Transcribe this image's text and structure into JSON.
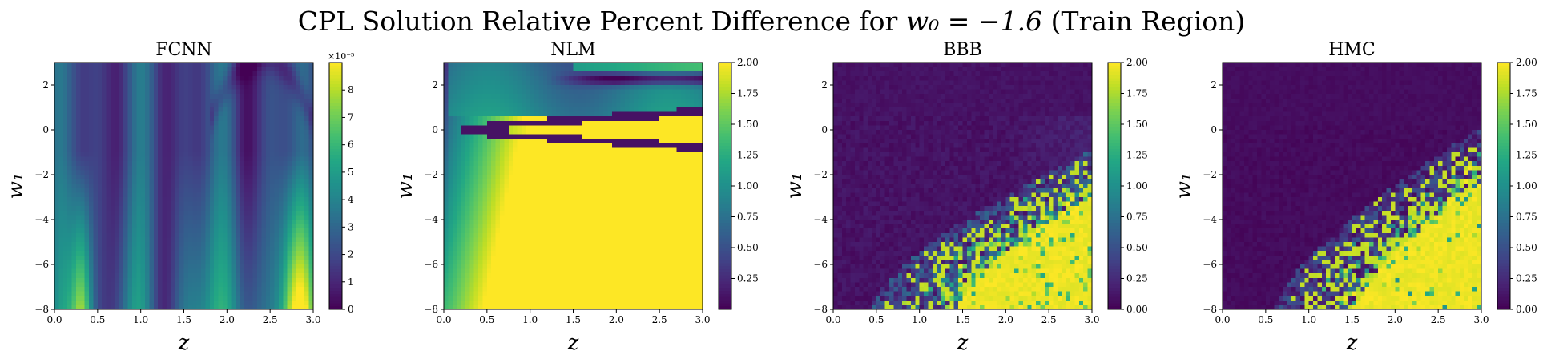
{
  "figure": {
    "title_prefix": "CPL Solution Relative Percent Difference for ",
    "title_math": "w₀ = −1.6",
    "title_suffix": " (Train Region)"
  },
  "chart_data": [
    {
      "type": "heatmap",
      "title": "FCNN",
      "xlabel": "z",
      "ylabel": "w₁",
      "xlim": [
        0,
        3
      ],
      "ylim": [
        -8,
        3
      ],
      "xticks": [
        "0.0",
        "0.5",
        "1.0",
        "1.5",
        "2.0",
        "2.5",
        "3.0"
      ],
      "xtick_values": [
        0,
        0.5,
        1,
        1.5,
        2,
        2.5,
        3
      ],
      "yticks": [
        "−8",
        "−6",
        "−4",
        "−2",
        "0",
        "2"
      ],
      "ytick_values": [
        -8,
        -6,
        -4,
        -2,
        0,
        2
      ],
      "colorbar": {
        "range": [
          0,
          9e-05
        ],
        "tick_labels": [
          "0",
          "1",
          "2",
          "3",
          "4",
          "5",
          "6",
          "7",
          "8"
        ],
        "tick_values": [
          0,
          1e-05,
          2e-05,
          3e-05,
          4e-05,
          5e-05,
          6e-05,
          7e-05,
          8e-05
        ],
        "offset_label": "×10⁻⁵"
      },
      "colormap": "viridis",
      "pattern": "smooth oscillating vertical stripes in z; values ~1–3e-5 at top, rising to ~7–9e-5 near w1=−8 at z≈0.3 and z≈2.8; curved low-value arc near z≈2.4, w1≈2"
    },
    {
      "type": "heatmap",
      "title": "NLM",
      "xlabel": "z",
      "ylabel": "w₁",
      "xlim": [
        0,
        3
      ],
      "ylim": [
        -8,
        3
      ],
      "xticks": [
        "0.0",
        "0.5",
        "1.0",
        "1.5",
        "2.0",
        "2.5",
        "3.0"
      ],
      "xtick_values": [
        0,
        0.5,
        1,
        1.5,
        2,
        2.5,
        3
      ],
      "yticks": [
        "−8",
        "−6",
        "−4",
        "−2",
        "0",
        "2"
      ],
      "ytick_values": [
        -8,
        -6,
        -4,
        -2,
        0,
        2
      ],
      "colorbar": {
        "range": [
          0,
          2
        ],
        "tick_labels": [
          "0.25",
          "0.50",
          "0.75",
          "1.00",
          "1.25",
          "1.50",
          "1.75",
          "2.00"
        ],
        "tick_values": [
          0.25,
          0.5,
          0.75,
          1,
          1.25,
          1.5,
          1.75,
          2
        ]
      },
      "colormap": "viridis",
      "pattern": "saturated (2.00) over most of the lower region for z > ~0.5; wedge-shaped saturated band around w1≈0 for z > ~1; low band at w1≈2.2 for z > ~1.6; smooth gradient near z=0"
    },
    {
      "type": "heatmap",
      "title": "BBB",
      "xlabel": "z",
      "ylabel": "w₁",
      "xlim": [
        0,
        3
      ],
      "ylim": [
        -8,
        3
      ],
      "xticks": [
        "0.0",
        "0.5",
        "1.0",
        "1.5",
        "2.0",
        "2.5",
        "3.0"
      ],
      "xtick_values": [
        0,
        0.5,
        1,
        1.5,
        2,
        2.5,
        3
      ],
      "yticks": [
        "−8",
        "−6",
        "−4",
        "−2",
        "0",
        "2"
      ],
      "ytick_values": [
        -8,
        -6,
        -4,
        -2,
        0,
        2
      ],
      "colorbar": {
        "range": [
          0,
          2
        ],
        "tick_labels": [
          "0.00",
          "0.25",
          "0.50",
          "0.75",
          "1.00",
          "1.25",
          "1.50",
          "1.75",
          "2.00"
        ],
        "tick_values": [
          0,
          0.25,
          0.5,
          0.75,
          1,
          1.25,
          1.5,
          1.75,
          2
        ]
      },
      "colormap": "viridis",
      "pattern": "near 0 over most of the domain; noisy transition band starting near z≈0.9 at w1=−8 curving up to z≈3 at w1≈−2; saturated (2.00) in lower-right corner"
    },
    {
      "type": "heatmap",
      "title": "HMC",
      "xlabel": "z",
      "ylabel": "w₁",
      "xlim": [
        0,
        3
      ],
      "ylim": [
        -8,
        3
      ],
      "xticks": [
        "0.0",
        "0.5",
        "1.0",
        "1.5",
        "2.0",
        "2.5",
        "3.0"
      ],
      "xtick_values": [
        0,
        0.5,
        1,
        1.5,
        2,
        2.5,
        3
      ],
      "yticks": [
        "−8",
        "−6",
        "−4",
        "−2",
        "0",
        "2"
      ],
      "ytick_values": [
        -8,
        -6,
        -4,
        -2,
        0,
        2
      ],
      "colorbar": {
        "range": [
          0,
          2
        ],
        "tick_labels": [
          "0.00",
          "0.25",
          "0.50",
          "0.75",
          "1.00",
          "1.25",
          "1.50",
          "1.75",
          "2.00"
        ],
        "tick_values": [
          0,
          0.25,
          0.5,
          0.75,
          1,
          1.25,
          1.5,
          1.75,
          2
        ]
      },
      "colormap": "viridis",
      "pattern": "near 0 over most of the domain; noisy transition band from z≈1.0 at w1=−8 up to z≈3 at w1≈−1; saturated (2.00) in lower-right corner"
    }
  ]
}
